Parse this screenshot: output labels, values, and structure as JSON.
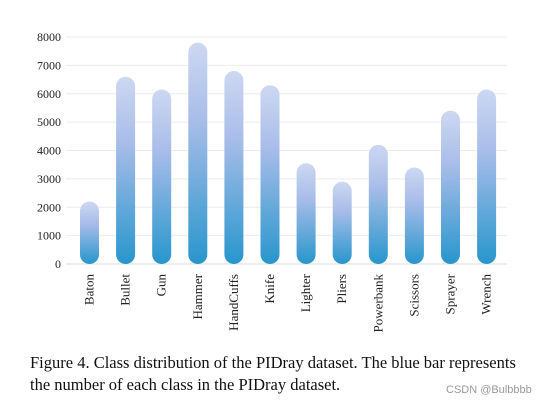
{
  "chart_data": {
    "type": "bar",
    "categories": [
      "Baton",
      "Bullet",
      "Gun",
      "Hammer",
      "HandCuffs",
      "Knife",
      "Lighter",
      "Pliers",
      "Powerbank",
      "Scissors",
      "Sprayer",
      "Wrench"
    ],
    "values": [
      2200,
      6600,
      6150,
      7800,
      6800,
      6300,
      3550,
      2900,
      4200,
      3400,
      5400,
      6150
    ],
    "yticks": [
      0,
      1000,
      2000,
      3000,
      4000,
      5000,
      6000,
      7000,
      8000
    ],
    "ylim": [
      0,
      8000
    ],
    "grid": true,
    "colors": {
      "bar_bottom": "#2796cc",
      "bar_middle": "#a9bde9",
      "bar_top": "#cdd8f1"
    }
  },
  "caption": "Figure 4. Class distribution of the PIDray dataset.  The blue bar represents the number of each class in the PIDray dataset.",
  "watermark": "CSDN @Bulbbbb"
}
